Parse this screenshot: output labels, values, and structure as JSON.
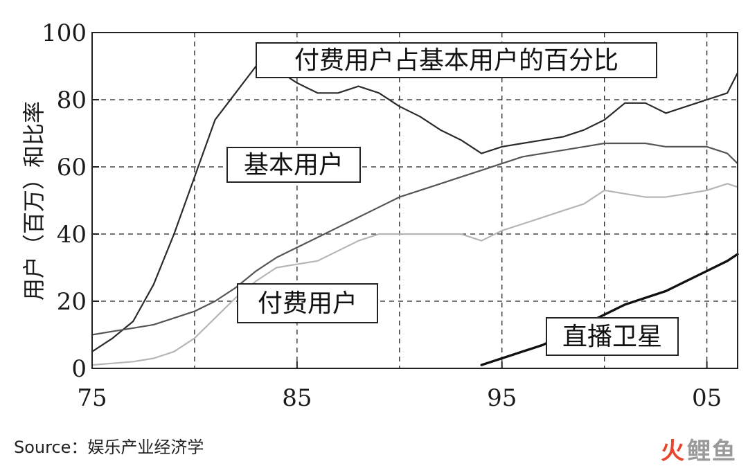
{
  "source_text": "Source：娱乐产业经济学",
  "watermark": {
    "part1": "火",
    "part2": "鲤鱼"
  },
  "chart_data": {
    "type": "line",
    "ylabel": "用户（百万）和比率",
    "xlim": [
      1975,
      2006.5
    ],
    "ylim": [
      0,
      100
    ],
    "x_ticks": [
      {
        "value": 1975,
        "label": "75"
      },
      {
        "value": 1985,
        "label": "85"
      },
      {
        "value": 1995,
        "label": "95"
      },
      {
        "value": 2005,
        "label": "05"
      }
    ],
    "y_ticks": [
      0,
      20,
      40,
      60,
      80,
      100
    ],
    "x_gridlines": [
      1980,
      1985,
      1990,
      1995,
      2000,
      2005
    ],
    "y_gridlines": [
      20,
      40,
      60,
      80
    ],
    "grid": true,
    "series": [
      {
        "name": "付费用户占基本用户的百分比",
        "color": "#2a2a2a",
        "width": 2.2,
        "x": [
          1975,
          1976,
          1977,
          1978,
          1979,
          1980,
          1981,
          1982,
          1983,
          1984,
          1985,
          1986,
          1987,
          1988,
          1989,
          1990,
          1991,
          1992,
          1993,
          1994,
          1995,
          1996,
          1997,
          1998,
          1999,
          2000,
          2001,
          2002,
          2003,
          2004,
          2005,
          2006,
          2006.5
        ],
        "values": [
          5,
          9,
          14,
          25,
          40,
          57,
          74,
          82,
          90,
          89,
          85,
          82,
          82,
          84,
          82,
          78,
          75,
          71,
          68,
          64,
          66,
          67,
          68,
          69,
          71,
          74,
          79,
          79,
          76,
          78,
          80,
          82,
          88
        ]
      },
      {
        "name": "基本用户",
        "color": "#555555",
        "width": 2.2,
        "x": [
          1975,
          1976,
          1977,
          1978,
          1979,
          1980,
          1981,
          1982,
          1983,
          1984,
          1985,
          1986,
          1987,
          1988,
          1989,
          1990,
          1991,
          1992,
          1993,
          1994,
          1995,
          1996,
          1997,
          1998,
          1999,
          2000,
          2001,
          2002,
          2003,
          2004,
          2005,
          2006,
          2006.5
        ],
        "values": [
          10,
          11,
          12,
          13,
          15,
          17,
          20,
          24,
          29,
          33,
          36,
          39,
          42,
          45,
          48,
          51,
          53,
          55,
          57,
          59,
          61,
          63,
          64,
          65,
          66,
          67,
          67,
          67,
          66,
          66,
          66,
          64,
          61
        ]
      },
      {
        "name": "付费用户",
        "color": "#b5b5b5",
        "width": 2.2,
        "x": [
          1975,
          1976,
          1977,
          1978,
          1979,
          1980,
          1981,
          1982,
          1983,
          1984,
          1985,
          1986,
          1987,
          1988,
          1989,
          1990,
          1991,
          1992,
          1993,
          1994,
          1995,
          1996,
          1997,
          1998,
          1999,
          2000,
          2001,
          2002,
          2003,
          2004,
          2005,
          2006,
          2006.5
        ],
        "values": [
          1,
          1.5,
          2,
          3,
          5,
          9,
          15,
          21,
          26,
          30,
          31,
          32,
          35,
          38,
          40,
          40,
          40,
          40,
          40,
          38,
          41,
          43,
          45,
          47,
          49,
          53,
          52,
          51,
          51,
          52,
          53,
          55,
          54
        ]
      },
      {
        "name": "直播卫星",
        "color": "#111111",
        "width": 3.4,
        "x": [
          1994,
          1995,
          1996,
          1997,
          1998,
          1999,
          2000,
          2001,
          2002,
          2003,
          2004,
          2005,
          2006,
          2006.5
        ],
        "values": [
          1,
          3,
          5,
          7,
          10,
          13,
          16,
          19,
          21,
          23,
          26,
          29,
          32,
          34
        ]
      }
    ],
    "annotations": [
      {
        "text": "付费用户占基本用户的百分比",
        "series": 0
      },
      {
        "text": "基本用户",
        "series": 1
      },
      {
        "text": "付费用户",
        "series": 2
      },
      {
        "text": "直播卫星",
        "series": 3
      }
    ]
  }
}
